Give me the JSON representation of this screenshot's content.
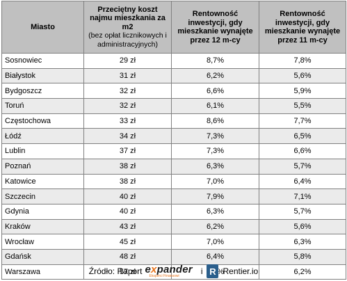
{
  "table": {
    "headers": {
      "city": "Miasto",
      "cost_title": "Przeciętny koszt najmu mieszkania za m2",
      "cost_note": "(bez opłat licznikowych i administracyjnych)",
      "yield12": "Rentowność inwestycji, gdy mieszkanie wynajęte przez 12 m-cy",
      "yield11": "Rentowność inwestycji, gdy mieszkanie wynajęte przez 11 m-cy"
    },
    "rows": [
      {
        "city": "Sosnowiec",
        "cost": "29 zł",
        "y12": "8,7%",
        "y11": "7,8%"
      },
      {
        "city": "Białystok",
        "cost": "31 zł",
        "y12": "6,2%",
        "y11": "5,6%"
      },
      {
        "city": "Bydgoszcz",
        "cost": "32 zł",
        "y12": "6,6%",
        "y11": "5,9%"
      },
      {
        "city": "Toruń",
        "cost": "32 zł",
        "y12": "6,1%",
        "y11": "5,5%"
      },
      {
        "city": "Częstochowa",
        "cost": "33 zł",
        "y12": "8,6%",
        "y11": "7,7%"
      },
      {
        "city": "Łódź",
        "cost": "34 zł",
        "y12": "7,3%",
        "y11": "6,5%"
      },
      {
        "city": "Lublin",
        "cost": "37 zł",
        "y12": "7,3%",
        "y11": "6,6%"
      },
      {
        "city": "Poznań",
        "cost": "38 zł",
        "y12": "6,3%",
        "y11": "5,7%"
      },
      {
        "city": "Katowice",
        "cost": "38 zł",
        "y12": "7,0%",
        "y11": "6,4%"
      },
      {
        "city": "Szczecin",
        "cost": "40 zł",
        "y12": "7,9%",
        "y11": "7,1%"
      },
      {
        "city": "Gdynia",
        "cost": "40 zł",
        "y12": "6,3%",
        "y11": "5,7%"
      },
      {
        "city": "Kraków",
        "cost": "43 zł",
        "y12": "6,2%",
        "y11": "5,6%"
      },
      {
        "city": "Wrocław",
        "cost": "45 zł",
        "y12": "7,0%",
        "y11": "6,3%"
      },
      {
        "city": "Gdańsk",
        "cost": "48 zł",
        "y12": "6,4%",
        "y11": "5,8%"
      },
      {
        "city": "Warszawa",
        "cost": "57 zł",
        "y12": "6,9%",
        "y11": "6,2%"
      }
    ]
  },
  "source": {
    "prefix": "Źródło: Raport",
    "expander_pre": "e",
    "expander_x": "x",
    "expander_post": "pander",
    "expander_tagline": "Eksperci Finansowi",
    "conjunction": "i",
    "rentier_letter": "R",
    "rentier_name": "Rentier.io"
  },
  "colors": {
    "header_bg": "#c0c0c0",
    "stripe_bg": "#ebebeb",
    "border": "#808080",
    "expander_accent": "#e8731a",
    "rentier_blue": "#2b5f8c"
  }
}
